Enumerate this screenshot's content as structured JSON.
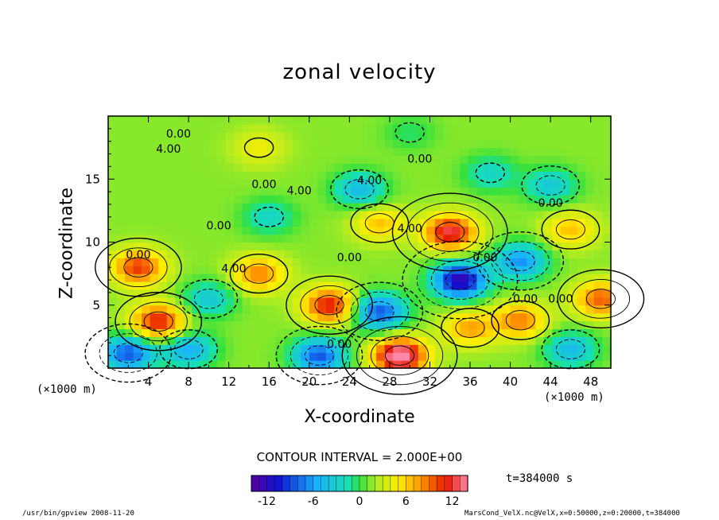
{
  "chart_data": {
    "type": "heatmap",
    "title": "zonal velocity",
    "xlabel": "X-coordinate",
    "ylabel": "Z-coordinate",
    "x_unit_left": "(×1000 m)",
    "x_unit_right": "(×1000 m)",
    "xlim": [
      0,
      50
    ],
    "ylim": [
      0,
      20
    ],
    "x_ticks": [
      "4",
      "8",
      "12",
      "16",
      "20",
      "24",
      "28",
      "32",
      "36",
      "40",
      "44",
      "48"
    ],
    "y_ticks": [
      "5",
      "10",
      "15"
    ],
    "contour_interval_text": "CONTOUR INTERVAL = 2.000E+00",
    "colorbar": {
      "range": [
        -14,
        14
      ],
      "ticks": [
        "-12",
        "-6",
        "0",
        "6",
        "12"
      ]
    },
    "contour_labels": [
      "0.00",
      "0.00",
      "0.00",
      "0.00",
      "0.00",
      "0.00",
      "0.00",
      "0.00",
      "0.00",
      "0.00",
      "4.00",
      "4.00",
      "4.00",
      "4.00",
      "4.00",
      "0.00"
    ],
    "features": [
      {
        "x": 29,
        "z": 1,
        "value": 14,
        "kind": "max"
      },
      {
        "x": 22,
        "z": 5,
        "value": 10,
        "kind": "max"
      },
      {
        "x": 35,
        "z": 7,
        "value": -14,
        "kind": "min"
      },
      {
        "x": 27,
        "z": 4.5,
        "value": -10,
        "kind": "min"
      },
      {
        "x": 3,
        "z": 8,
        "value": 9,
        "kind": "max"
      },
      {
        "x": 5,
        "z": 3.7,
        "value": 10,
        "kind": "max"
      },
      {
        "x": 34,
        "z": 10.8,
        "value": 11,
        "kind": "max"
      },
      {
        "x": 21,
        "z": 1,
        "value": -10,
        "kind": "min"
      },
      {
        "x": 2,
        "z": 1.2,
        "value": -10,
        "kind": "min"
      },
      {
        "x": 41,
        "z": 8.5,
        "value": -8,
        "kind": "min"
      },
      {
        "x": 15,
        "z": 7.5,
        "value": 7,
        "kind": "max"
      },
      {
        "x": 41,
        "z": 3.8,
        "value": 7,
        "kind": "max"
      },
      {
        "x": 36,
        "z": 3.2,
        "value": 6,
        "kind": "max"
      },
      {
        "x": 49,
        "z": 5.5,
        "value": 8,
        "kind": "max"
      },
      {
        "x": 25,
        "z": 14.2,
        "value": -6,
        "kind": "min"
      },
      {
        "x": 44,
        "z": 14.5,
        "value": -5,
        "kind": "min"
      },
      {
        "x": 10,
        "z": 5.5,
        "value": -5,
        "kind": "min"
      },
      {
        "x": 27,
        "z": 11.5,
        "value": 5,
        "kind": "max"
      },
      {
        "x": 46,
        "z": 11,
        "value": 5,
        "kind": "max"
      },
      {
        "x": 16,
        "z": 12,
        "value": -4,
        "kind": "min"
      },
      {
        "x": 15,
        "z": 17.5,
        "value": 3,
        "kind": "max"
      },
      {
        "x": 38,
        "z": 15.5,
        "value": -4,
        "kind": "min"
      },
      {
        "x": 46,
        "z": 1.5,
        "value": -6,
        "kind": "min"
      },
      {
        "x": 8,
        "z": 1.5,
        "value": -7,
        "kind": "min"
      },
      {
        "x": 30,
        "z": 18.7,
        "value": -2,
        "kind": "min"
      }
    ],
    "colors": {
      "min": "#5a00a0",
      "max": "#ff88a8"
    }
  },
  "annotations": {
    "time": "t=384000 s",
    "footer_left": "/usr/bin/gpview   2008-11-20",
    "footer_right": "MarsCond_VelX.nc@VelX,x=0:50000,z=0:20000,t=384000"
  }
}
